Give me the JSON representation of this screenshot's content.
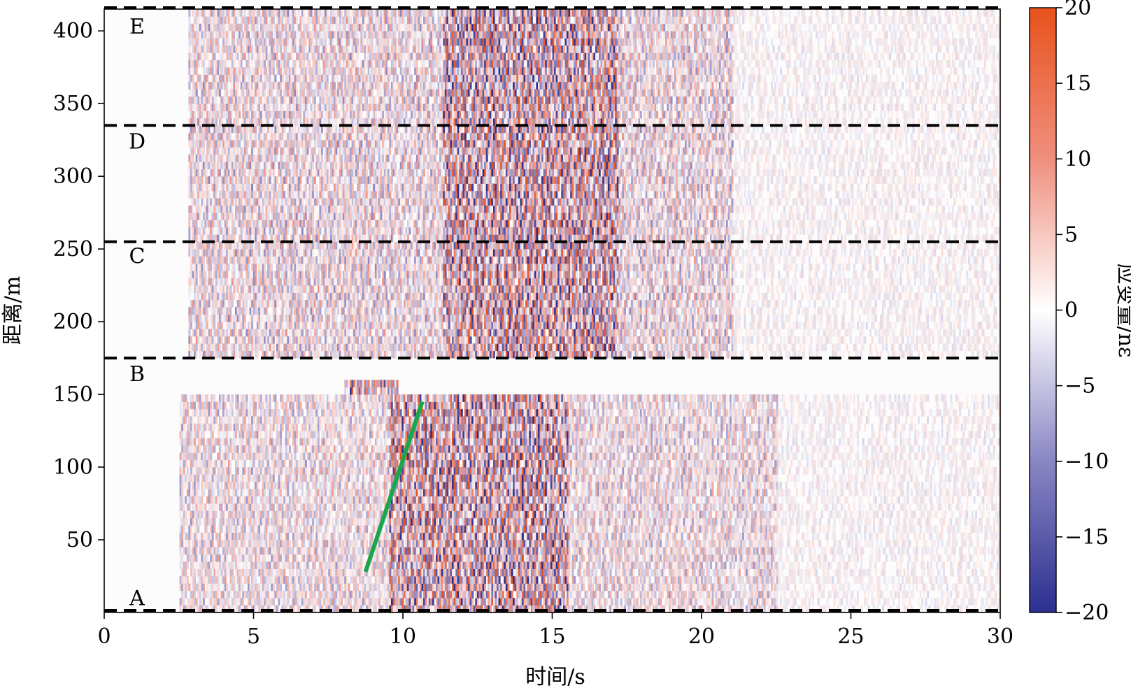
{
  "chart_data": {
    "type": "heatmap",
    "xlabel": "时间/s",
    "ylabel": "距离/m",
    "xlim": [
      0,
      30
    ],
    "ylim": [
      0,
      415
    ],
    "xticks": [
      0,
      5,
      10,
      15,
      20,
      25,
      30
    ],
    "yticks": [
      50,
      100,
      150,
      200,
      250,
      300,
      350,
      400
    ],
    "grid": false,
    "colorbar": {
      "label": "应变量/nε",
      "range": [
        -20,
        20
      ],
      "ticks": [
        20,
        15,
        10,
        5,
        0,
        -5,
        -10,
        -15,
        -20
      ],
      "tick_labels": [
        "20",
        "15",
        "10",
        "5",
        "0",
        "−5",
        "−10",
        "−15",
        "−20"
      ],
      "colormap_stops": [
        {
          "value": -20,
          "color": "#2b2f8f"
        },
        {
          "value": -10,
          "color": "#8a86c4"
        },
        {
          "value": 0,
          "color": "#ffffff"
        },
        {
          "value": 10,
          "color": "#ef8f7e"
        },
        {
          "value": 20,
          "color": "#e8521c"
        }
      ]
    },
    "section_boundaries": [
      {
        "y": 0,
        "label": "A"
      },
      {
        "y": 175,
        "label": "B"
      },
      {
        "y": 255,
        "label": "C"
      },
      {
        "y": 335,
        "label": "D"
      },
      {
        "y": 415,
        "label": "E"
      }
    ],
    "section_label_positions": [
      {
        "label": "E",
        "x": 1.1,
        "y": 402
      },
      {
        "label": "D",
        "x": 1.1,
        "y": 323
      },
      {
        "label": "C",
        "x": 1.1,
        "y": 244
      },
      {
        "label": "B",
        "x": 1.1,
        "y": 163
      },
      {
        "label": "A",
        "x": 1.1,
        "y": 9
      }
    ],
    "annotation_line": {
      "color": "#1aa64a",
      "x": [
        8.75,
        10.65
      ],
      "y": [
        28,
        145
      ]
    },
    "activity_regions": [
      {
        "name": "upper-strong",
        "t_start": 11.3,
        "t_end": 17.2,
        "y_min": 175,
        "y_max": 415,
        "amplitude": 20
      },
      {
        "name": "upper-mid",
        "t_start": 2.8,
        "t_end": 21.0,
        "y_min": 175,
        "y_max": 415,
        "amplitude": 9
      },
      {
        "name": "upper-tail",
        "t_start": 21.0,
        "t_end": 30,
        "y_min": 175,
        "y_max": 415,
        "amplitude": 3
      },
      {
        "name": "lower-strong",
        "t_start": 9.5,
        "t_end": 15.5,
        "y_min": 0,
        "y_max": 150,
        "amplitude": 20
      },
      {
        "name": "lower-mid",
        "t_start": 2.5,
        "t_end": 22.5,
        "y_min": 0,
        "y_max": 150,
        "amplitude": 8
      },
      {
        "name": "lower-tail",
        "t_start": 22.5,
        "t_end": 30,
        "y_min": 0,
        "y_max": 150,
        "amplitude": 3
      },
      {
        "name": "blob",
        "t_start": 8.0,
        "t_end": 9.8,
        "y_min": 147,
        "y_max": 158,
        "amplitude": 18
      }
    ]
  }
}
